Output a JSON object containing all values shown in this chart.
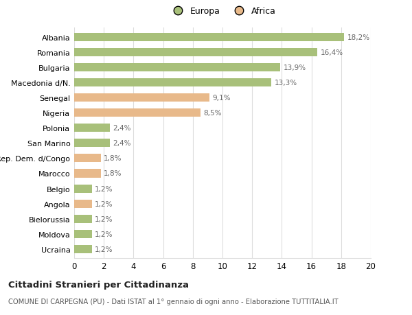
{
  "categories": [
    "Albania",
    "Romania",
    "Bulgaria",
    "Macedonia d/N.",
    "Senegal",
    "Nigeria",
    "Polonia",
    "San Marino",
    "Rep. Dem. d/Congo",
    "Marocco",
    "Belgio",
    "Angola",
    "Bielorussia",
    "Moldova",
    "Ucraina"
  ],
  "values": [
    18.2,
    16.4,
    13.9,
    13.3,
    9.1,
    8.5,
    2.4,
    2.4,
    1.8,
    1.8,
    1.2,
    1.2,
    1.2,
    1.2,
    1.2
  ],
  "continents": [
    "Europa",
    "Europa",
    "Europa",
    "Europa",
    "Africa",
    "Africa",
    "Europa",
    "Europa",
    "Africa",
    "Africa",
    "Europa",
    "Africa",
    "Europa",
    "Europa",
    "Europa"
  ],
  "labels": [
    "18,2%",
    "16,4%",
    "13,9%",
    "13,3%",
    "9,1%",
    "8,5%",
    "2,4%",
    "2,4%",
    "1,8%",
    "1,8%",
    "1,2%",
    "1,2%",
    "1,2%",
    "1,2%",
    "1,2%"
  ],
  "color_europa": "#a8c07a",
  "color_africa": "#e8b98a",
  "background_color": "#ffffff",
  "grid_color": "#dddddd",
  "xlim": [
    0,
    20
  ],
  "xticks": [
    0,
    2,
    4,
    6,
    8,
    10,
    12,
    14,
    16,
    18,
    20
  ],
  "title": "Cittadini Stranieri per Cittadinanza",
  "subtitle": "COMUNE DI CARPEGNA (PU) - Dati ISTAT al 1° gennaio di ogni anno - Elaborazione TUTTITALIA.IT",
  "legend_europa": "Europa",
  "legend_africa": "Africa",
  "bar_height": 0.55
}
